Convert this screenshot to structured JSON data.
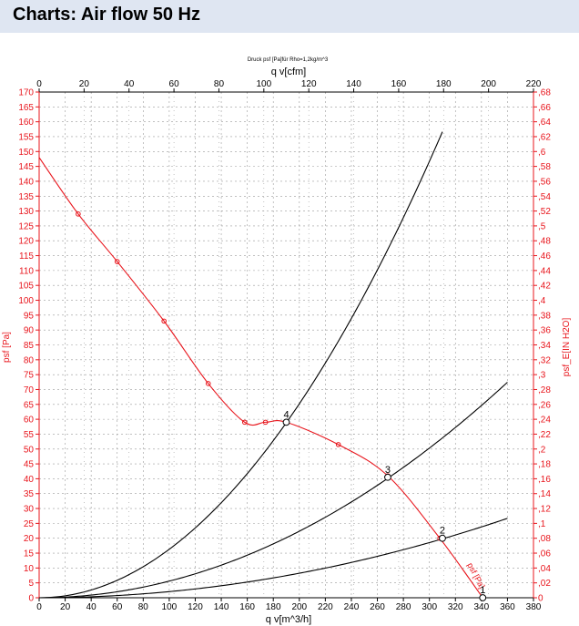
{
  "page": {
    "title": "Charts: Air flow 50 Hz"
  },
  "chart_data": {
    "type": "line",
    "subtitle": "Druck psf [Pa]für Rho=1,2kg/m^3",
    "top_axis": {
      "label": "q v[cfm]",
      "range": [
        0,
        220
      ],
      "ticks": [
        0,
        20,
        40,
        60,
        80,
        100,
        120,
        140,
        160,
        180,
        200,
        220
      ]
    },
    "x_axis": {
      "label": "q v[m^3/h]",
      "range": [
        0,
        380
      ],
      "ticks": [
        0,
        20,
        40,
        60,
        80,
        100,
        120,
        140,
        160,
        180,
        200,
        220,
        240,
        260,
        280,
        300,
        320,
        340,
        360,
        380
      ]
    },
    "left_axis": {
      "label": "psf [Pa]",
      "range": [
        0,
        170
      ],
      "step": 5
    },
    "right_axis": {
      "label": "psf_E[IN H2O]",
      "range": [
        0,
        0.68
      ],
      "step": 0.02
    },
    "grid": true,
    "colors": {
      "fan_curve": "#e8141b",
      "system_curves": "#000000",
      "left_axis": "#e8141b",
      "right_axis": "#e8141b",
      "bottom_axis": "#000000",
      "grid": "#9a9a9a"
    },
    "fan_curve": {
      "name": "psf [Pa]",
      "points": [
        [
          0,
          148
        ],
        [
          30,
          129
        ],
        [
          60,
          113
        ],
        [
          96,
          93
        ],
        [
          130,
          72
        ],
        [
          158,
          59
        ],
        [
          174,
          59
        ],
        [
          190,
          59
        ],
        [
          230,
          51.5
        ],
        [
          268,
          41
        ],
        [
          308,
          20
        ],
        [
          341,
          0
        ]
      ],
      "markers": [
        [
          30,
          129
        ],
        [
          60,
          113
        ],
        [
          96,
          93
        ],
        [
          130,
          72
        ],
        [
          158,
          59
        ],
        [
          174,
          59
        ],
        [
          190,
          59
        ],
        [
          230,
          51.5
        ],
        [
          268,
          41
        ],
        [
          308,
          20
        ],
        [
          341,
          0
        ]
      ]
    },
    "system_curves": [
      {
        "coef": 0.00163,
        "x_end": 310
      },
      {
        "coef": 0.000559,
        "x_end": 360
      },
      {
        "coef": 0.000206,
        "x_end": 360
      }
    ],
    "operating_points": [
      {
        "label": "4",
        "x": 190,
        "y": 59
      },
      {
        "label": "3",
        "x": 268,
        "y": 40.5
      },
      {
        "label": "2",
        "x": 310,
        "y": 20
      },
      {
        "label": "1",
        "x": 341,
        "y": 0
      }
    ]
  }
}
